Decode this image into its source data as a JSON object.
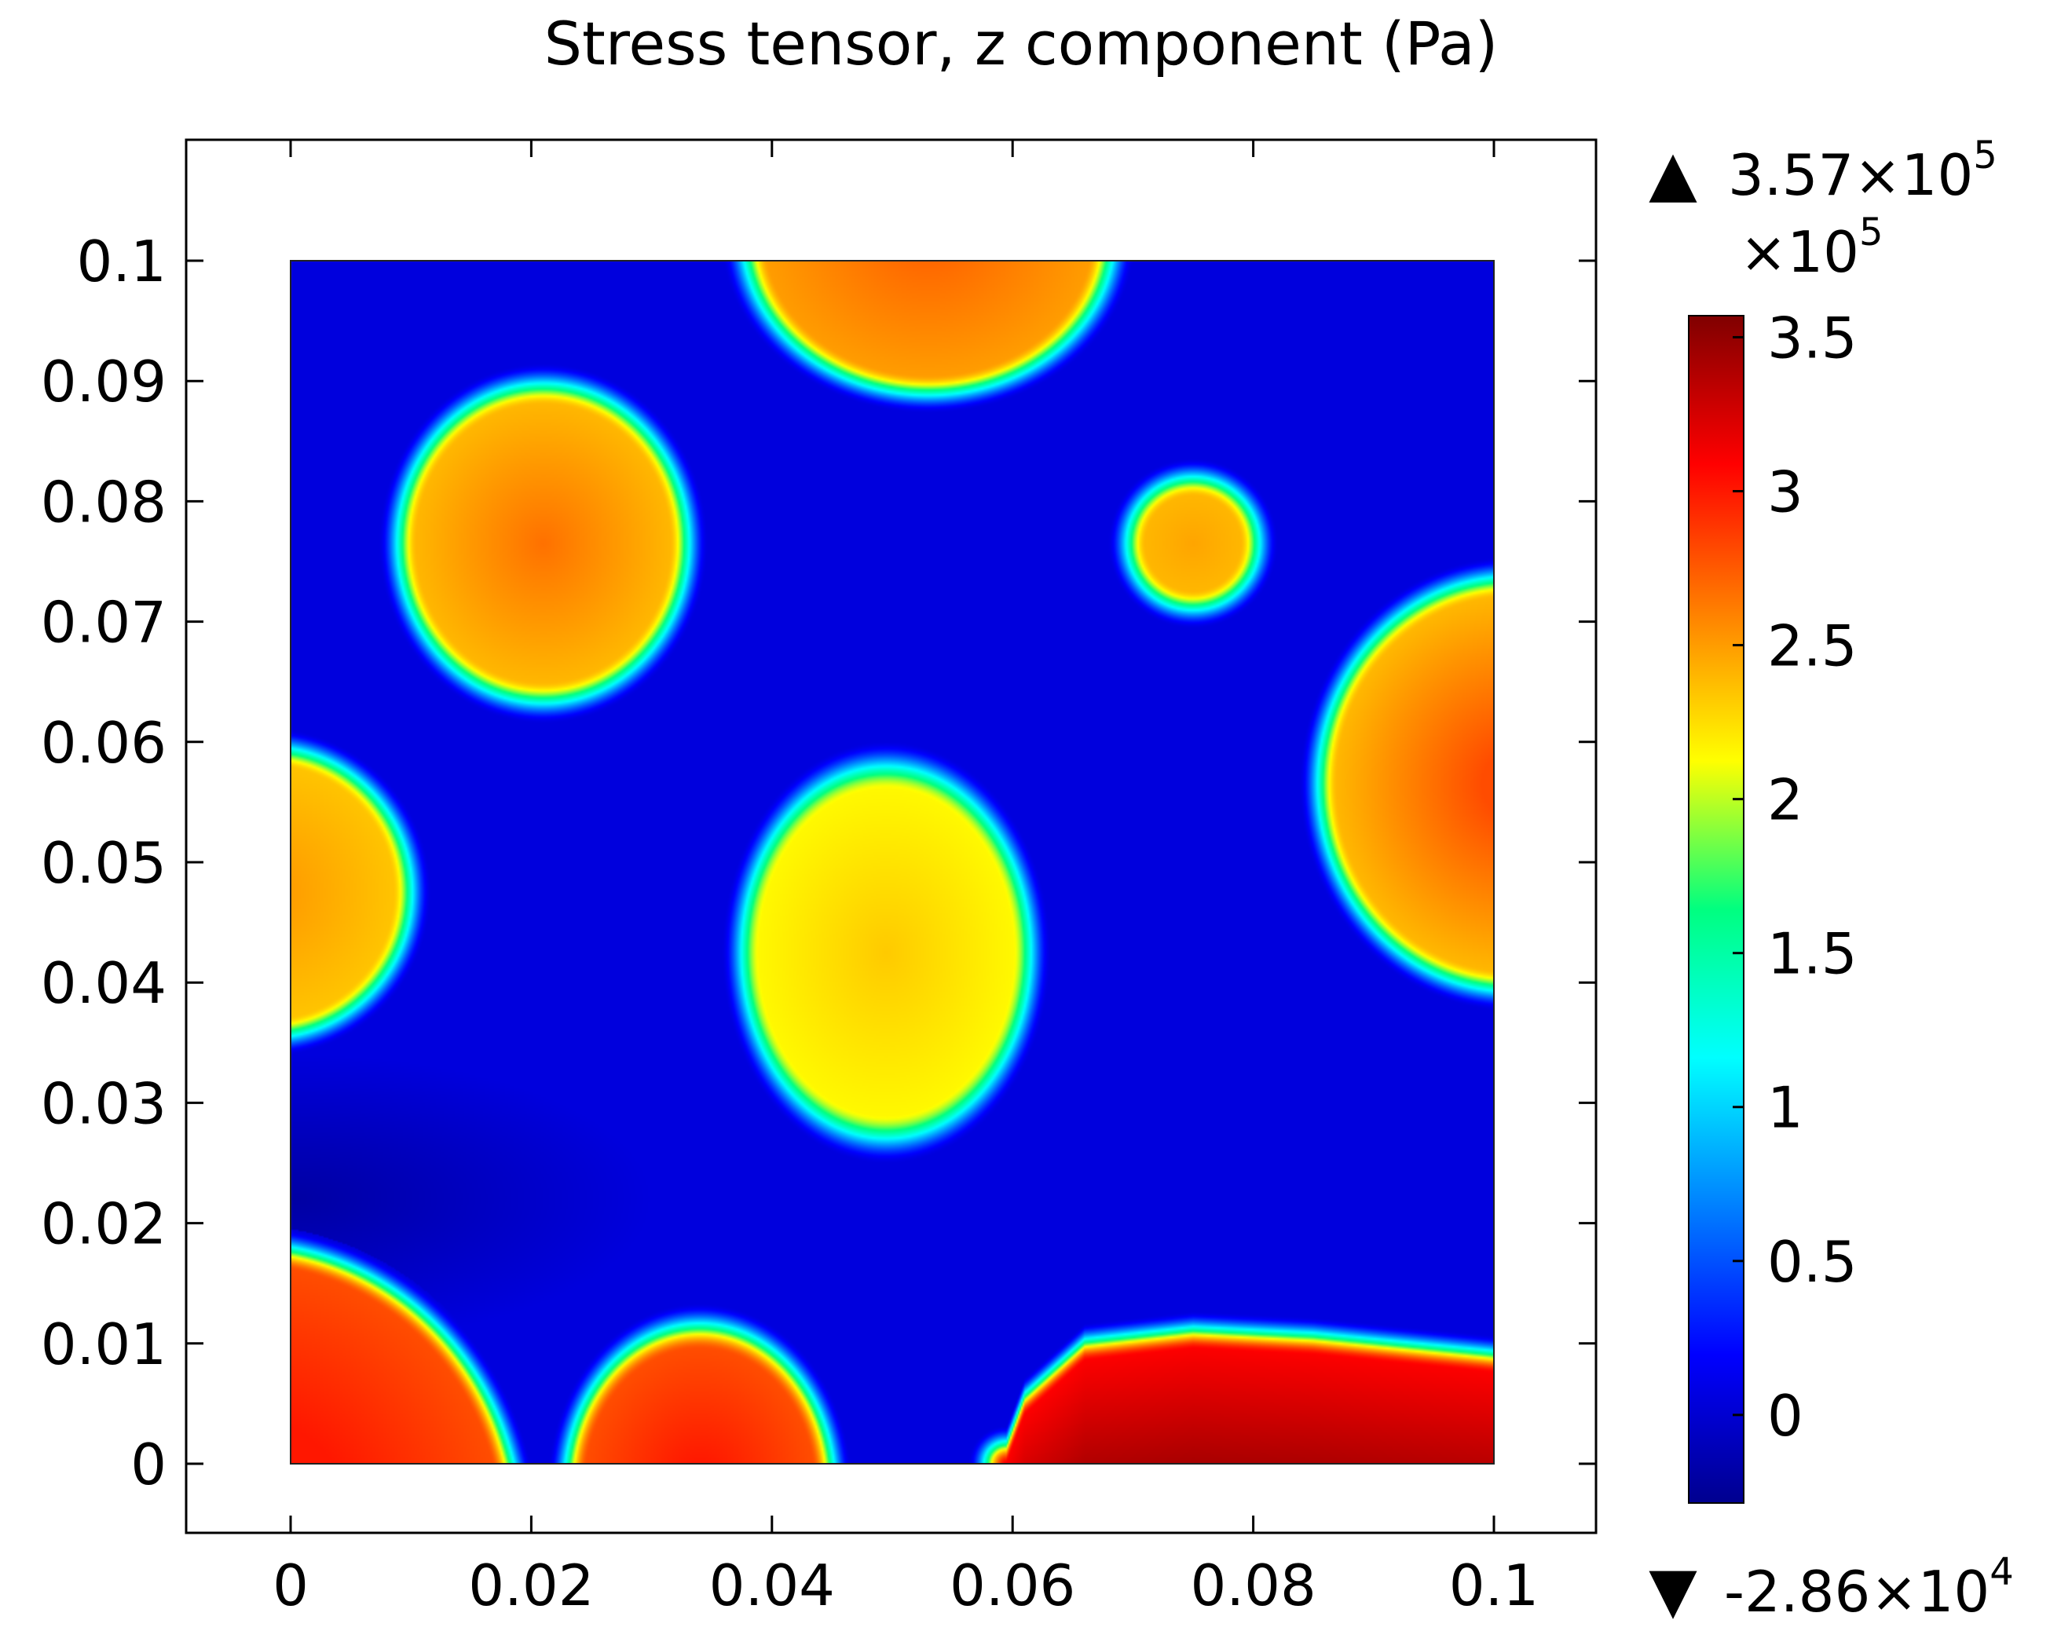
{
  "chart_data": {
    "type": "heatmap",
    "title": "Stress tensor, z component (Pa)",
    "xlabel": "",
    "ylabel": "",
    "xlim": [
      0,
      0.1
    ],
    "ylim": [
      0,
      0.1
    ],
    "plot_range": {
      "x": [
        -0.009,
        0.108
      ],
      "y": [
        -0.0057,
        0.1098
      ]
    },
    "x_ticks": [
      {
        "value": 0,
        "label": "0"
      },
      {
        "value": 0.02,
        "label": "0.02"
      },
      {
        "value": 0.04,
        "label": "0.04"
      },
      {
        "value": 0.06,
        "label": "0.06"
      },
      {
        "value": 0.08,
        "label": "0.08"
      },
      {
        "value": 0.1,
        "label": "0.1"
      }
    ],
    "y_ticks": [
      {
        "value": 0,
        "label": "0"
      },
      {
        "value": 0.01,
        "label": "0.01"
      },
      {
        "value": 0.02,
        "label": "0.02"
      },
      {
        "value": 0.03,
        "label": "0.03"
      },
      {
        "value": 0.04,
        "label": "0.04"
      },
      {
        "value": 0.05,
        "label": "0.05"
      },
      {
        "value": 0.06,
        "label": "0.06"
      },
      {
        "value": 0.07,
        "label": "0.07"
      },
      {
        "value": 0.08,
        "label": "0.08"
      },
      {
        "value": 0.09,
        "label": "0.09"
      },
      {
        "value": 0.1,
        "label": "0.1"
      }
    ],
    "background_value": 0.05,
    "regions": [
      {
        "shape": "ellipse",
        "cx": 0.021,
        "cy": 0.0765,
        "rx": 0.0105,
        "ry": 0.0115,
        "peak": 2.7,
        "edge": 2.4
      },
      {
        "shape": "ellipse",
        "cx": 0.0495,
        "cy": 0.0425,
        "rx": 0.0105,
        "ry": 0.0135,
        "peak": 2.35,
        "edge": 2.15
      },
      {
        "shape": "ellipse",
        "cx": 0.053,
        "cy": 0.102,
        "rx": 0.0135,
        "ry": 0.0115,
        "peak": 2.75,
        "edge": 2.5
      },
      {
        "shape": "ellipse",
        "cx": 0.075,
        "cy": 0.0765,
        "rx": 0.0039,
        "ry": 0.0039,
        "peak": 2.6,
        "edge": 2.4
      },
      {
        "shape": "ellipse",
        "cx": 0.1015,
        "cy": 0.0565,
        "rx": 0.0145,
        "ry": 0.0155,
        "peak": 2.8,
        "edge": 2.4
      },
      {
        "shape": "ellipse",
        "cx": -0.002,
        "cy": 0.0475,
        "rx": 0.0105,
        "ry": 0.0105,
        "peak": 2.55,
        "edge": 2.35
      },
      {
        "shape": "ellipse",
        "cx": -0.004,
        "cy": -0.006,
        "rx": 0.0215,
        "ry": 0.0225,
        "peak": 3.0,
        "edge": 2.8
      },
      {
        "shape": "ellipse",
        "cx": 0.034,
        "cy": -0.002,
        "rx": 0.0095,
        "ry": 0.0115,
        "peak": 3.1,
        "edge": 2.8
      },
      {
        "shape": "band",
        "x0": 0.0595,
        "x1": 0.1,
        "y_top": [
          [
            0.0595,
            0.0
          ],
          [
            0.061,
            0.004
          ],
          [
            0.066,
            0.0085
          ],
          [
            0.075,
            0.0095
          ],
          [
            0.085,
            0.009
          ],
          [
            0.1,
            0.0075
          ]
        ],
        "peak": 3.5,
        "edge": 3.1
      }
    ],
    "colorbar": {
      "max_marker": "3.57×10",
      "max_marker_exp": "5",
      "min_marker": "-2.86×10",
      "min_marker_exp": "4",
      "multiplier": "×10",
      "multiplier_exp": "5",
      "range": [
        -0.286,
        3.57
      ],
      "ticks": [
        {
          "value": 3.5,
          "label": "3.5"
        },
        {
          "value": 3,
          "label": "3"
        },
        {
          "value": 2.5,
          "label": "2.5"
        },
        {
          "value": 2,
          "label": "2"
        },
        {
          "value": 1.5,
          "label": "1.5"
        },
        {
          "value": 1,
          "label": "1"
        },
        {
          "value": 0.5,
          "label": "0.5"
        },
        {
          "value": 0,
          "label": "0"
        }
      ],
      "colormap": [
        "#00008f",
        "#0000ff",
        "#0080ff",
        "#00ffff",
        "#00ff80",
        "#ffff00",
        "#ff8000",
        "#ff0000",
        "#800000"
      ]
    }
  }
}
